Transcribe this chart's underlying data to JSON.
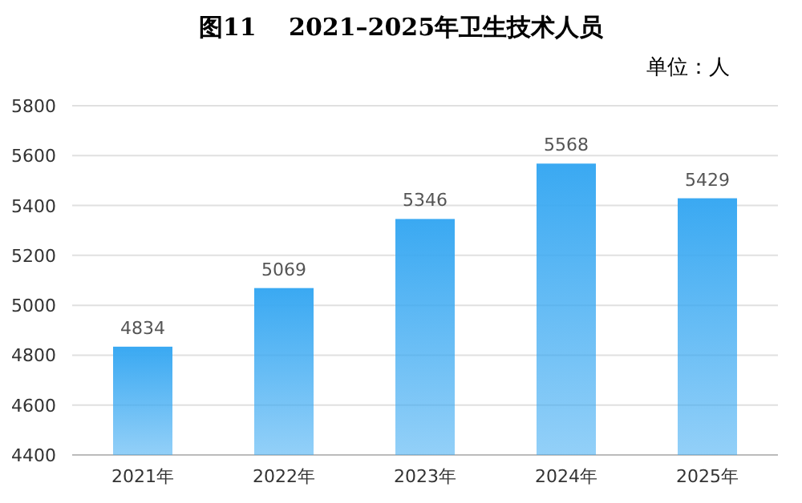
{
  "chart_data": {
    "type": "bar",
    "title": "图11　 2021–2025年卫生技术人员",
    "subtitle": "单位：人",
    "categories": [
      "2021年",
      "2022年",
      "2023年",
      "2024年",
      "2025年"
    ],
    "values": [
      4834,
      5069,
      5346,
      5568,
      5429
    ],
    "color": "#3aa9f2",
    "ylim": [
      4400,
      5800
    ],
    "yticks": [
      4400,
      4600,
      4800,
      5000,
      5200,
      5400,
      5600,
      5800
    ],
    "grid": "y",
    "data_labels": true
  }
}
